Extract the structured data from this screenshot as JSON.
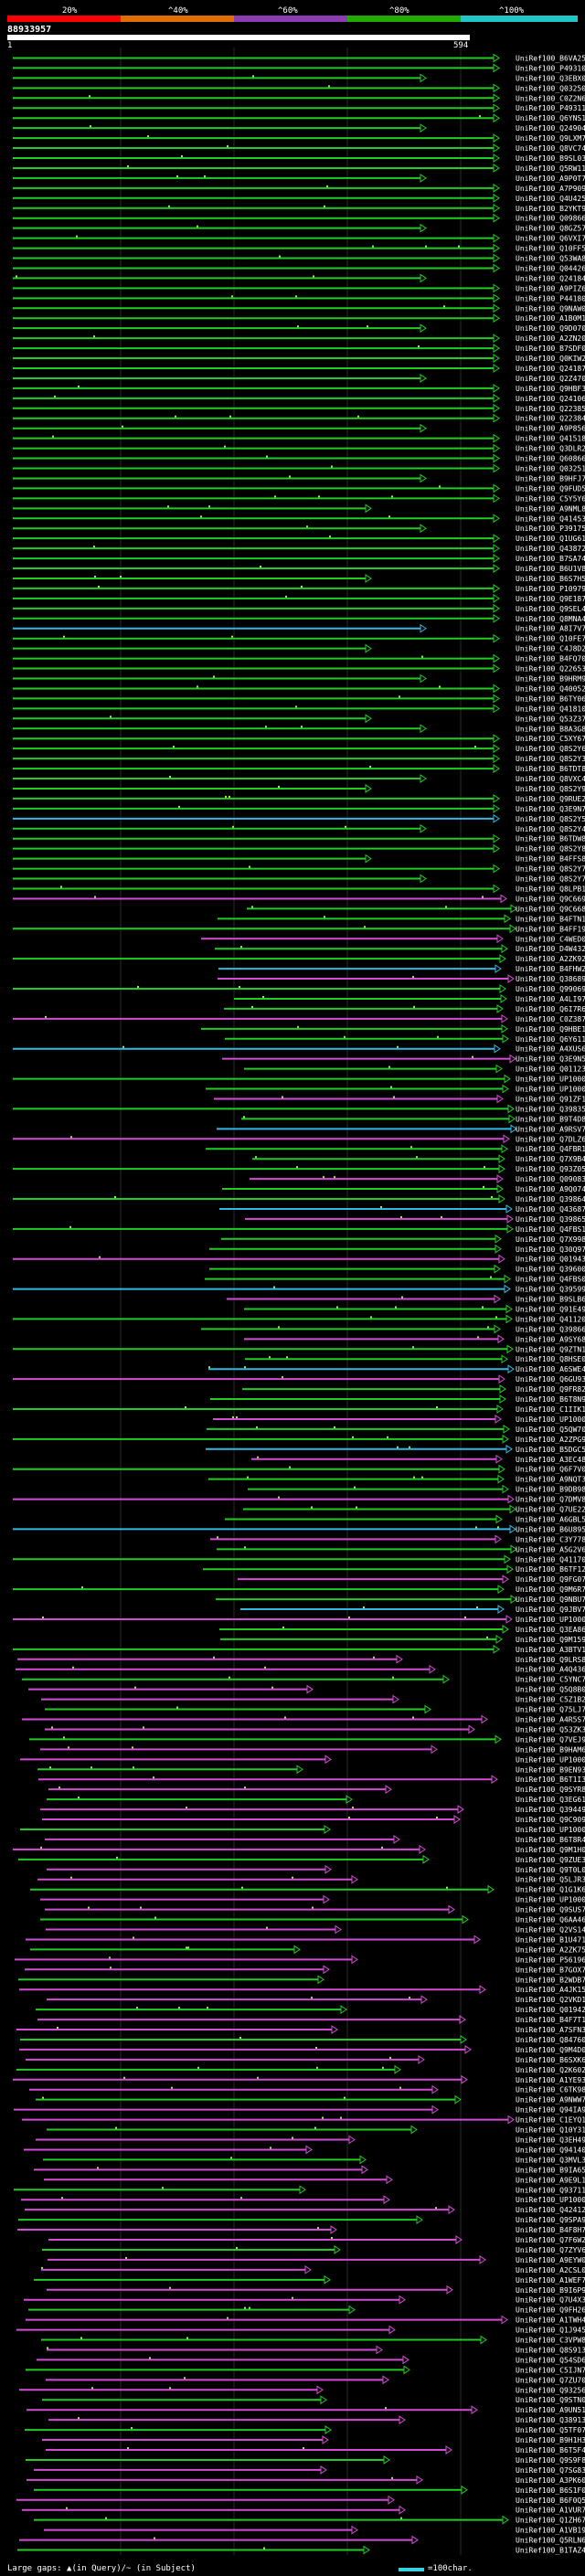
{
  "legend": {
    "labels": [
      "20%",
      "^40%",
      "^60%",
      "^80%",
      "^100%"
    ],
    "colors": [
      "#ff0000",
      "#e06d00",
      "#8b3bb3",
      "#22aa00",
      "#22c6c6"
    ]
  },
  "query": {
    "id": "88933957",
    "start": "1",
    "end": "594"
  },
  "colors": {
    "high": "#22cc22",
    "mid": "#d44cd4",
    "low": "#33b8e0",
    "lightgreen": "#9cf24a"
  },
  "hits": [
    "UniRef100_B6VA25",
    "UniRef100_P49310",
    "UniRef100_Q3EBX0",
    "UniRef100_Q03250",
    "UniRef100_C0Z2N6",
    "UniRef100_P49311",
    "UniRef100_Q6YNS1",
    "UniRef100_Q24904",
    "UniRef100_Q9LXM7",
    "UniRef100_Q8VC74",
    "UniRef100_B9SL03",
    "UniRef100_Q5RW11",
    "UniRef100_A9P0T7",
    "UniRef100_A7P909",
    "UniRef100_Q4U425",
    "UniRef100_B2YKT9",
    "UniRef100_Q09866",
    "UniRef100_Q8GZ57",
    "UniRef100_Q6VXI7",
    "UniRef100_Q10FF5",
    "UniRef100_Q53WA8",
    "UniRef100_Q04426",
    "UniRef100_Q24184",
    "UniRef100_A9PIZ6",
    "UniRef100_P44180",
    "UniRef100_Q9NAW0",
    "UniRef100_A1B0M1",
    "UniRef100_Q9D070",
    "UniRef100_A2ZN20",
    "UniRef100_B7SDF0",
    "UniRef100_Q0KIW2",
    "UniRef100_Q24187",
    "UniRef100_Q2Z470",
    "UniRef100_Q9HBF3",
    "UniRef100_Q24106",
    "UniRef100_Q22385",
    "UniRef100_Q22384",
    "UniRef100_A9P856",
    "UniRef100_Q41518",
    "UniRef100_Q3DLR2",
    "UniRef100_Q60866",
    "UniRef100_Q03251",
    "UniRef100_B9HFJ7",
    "UniRef100_Q9FUD5",
    "UniRef100_C5Y5Y6",
    "UniRef100_A9NML8",
    "UniRef100_Q41453",
    "UniRef100_P39175",
    "UniRef100_Q1UG61",
    "UniRef100_Q43872",
    "UniRef100_B7SA74",
    "UniRef100_B6U1V8",
    "UniRef100_B6S7H5",
    "UniRef100_P10979",
    "UniRef100_Q9E187",
    "UniRef100_Q9SEL4",
    "UniRef100_Q8MNA4",
    "UniRef100_A8I7V7",
    "UniRef100_Q10FE7",
    "UniRef100_C4J8D2",
    "UniRef100_B4FQ70",
    "UniRef100_Q22653",
    "UniRef100_B9HRM9",
    "UniRef100_Q40052",
    "UniRef100_B6TY06",
    "UniRef100_Q41810",
    "UniRef100_Q53Z37",
    "UniRef100_B8A3G8",
    "UniRef100_C5XY67",
    "UniRef100_Q8S2Y6",
    "UniRef100_Q8S2Y3",
    "UniRef100_B6TDT8",
    "UniRef100_Q8VXC4",
    "UniRef100_Q8S2Y9",
    "UniRef100_Q9RUE2",
    "UniRef100_Q3E9N7",
    "UniRef100_Q8S2Y5",
    "UniRef100_Q8S2Y4",
    "UniRef100_B6TDW8",
    "UniRef100_Q8S2Y8",
    "UniRef100_B4FFS8",
    "UniRef100_Q8S2Y7",
    "UniRef100_Q8S2Y7",
    "UniRef100_Q8LPB1",
    "UniRef100_Q9C669",
    "UniRef100_Q9C668",
    "UniRef100_B4FTN1",
    "UniRef100_B4FF19",
    "UniRef100_C4WED0",
    "UniRef100_D4W432",
    "UniRef100_A2ZK92",
    "UniRef100_B4FHW2",
    "UniRef100_Q38689",
    "UniRef100_Q99069",
    "UniRef100_A4LI97",
    "UniRef100_Q6I7R6",
    "UniRef100_C0Z387",
    "UniRef100_Q9HBE1",
    "UniRef100_Q6Y611",
    "UniRef100_A4XUS6",
    "UniRef100_Q3E9N5",
    "UniRef100_Q01123",
    "UniRef100_UP1000...",
    "UniRef100_UP1000...",
    "UniRef100_Q91ZF1",
    "UniRef100_Q39835",
    "UniRef100_B9T4D8",
    "UniRef100_A9RSV7",
    "UniRef100_Q7DLZ6",
    "UniRef100_Q4FBR1",
    "UniRef100_Q7X9B4",
    "UniRef100_Q93Z05",
    "UniRef100_Q09083",
    "UniRef100_A9Q074",
    "UniRef100_Q39864",
    "UniRef100_Q43687",
    "UniRef100_Q39865",
    "UniRef100_Q4FBS1",
    "UniRef100_Q7X998",
    "UniRef100_Q30Q97",
    "UniRef100_Q01943",
    "UniRef100_Q39600",
    "UniRef100_Q4FBS0",
    "UniRef100_Q39599",
    "UniRef100_B9SLB6",
    "UniRef100_Q91E49",
    "UniRef100_Q41120",
    "UniRef100_Q39866",
    "UniRef100_A9SY68",
    "UniRef100_Q9ZTN1",
    "UniRef100_Q8HSE0",
    "UniRef100_A6SWE4",
    "UniRef100_Q6GU93",
    "UniRef100_Q9FR82",
    "UniRef100_B6T8N9",
    "UniRef100_C1IIK1",
    "UniRef100_UP1000...",
    "UniRef100_Q5QW70",
    "UniRef100_A2ZPG9",
    "UniRef100_B5DGC5",
    "UniRef100_A3EC48",
    "UniRef100_Q6F7V0",
    "UniRef100_A9NQT3",
    "UniRef100_B9DB98",
    "UniRef100_Q7DMV8",
    "UniRef100_Q7UE22",
    "UniRef100_A6GBL5",
    "UniRef100_B6U895",
    "UniRef100_C3Y778",
    "UniRef100_A5G2V6",
    "UniRef100_Q41170",
    "UniRef100_B6TF12",
    "UniRef100_Q9FG07",
    "UniRef100_Q9M6R7",
    "UniRef100_Q9NBU7",
    "UniRef100_Q9JBV7",
    "UniRef100_UP1000...",
    "UniRef100_Q3EA86",
    "UniRef100_Q9M159",
    "UniRef100_A3BTV1",
    "UniRef100_Q9LRS8",
    "UniRef100_A4Q436",
    "UniRef100_C5YNC7",
    "UniRef100_Q5Q8B0",
    "UniRef100_C5Z1B2",
    "UniRef100_Q75LJ7",
    "UniRef100_A4R5S7",
    "UniRef100_Q53ZK3",
    "UniRef100_Q7VEJ9",
    "UniRef100_B9HAM6",
    "UniRef100_UP1000...",
    "UniRef100_B9EN93",
    "UniRef100_B6T1I3",
    "UniRef100_Q9SYR8",
    "UniRef100_Q3EG61",
    "UniRef100_Q39449",
    "UniRef100_Q9C909",
    "UniRef100_UP1000...",
    "UniRef100_B6T8R4",
    "UniRef100_Q9M1H0",
    "UniRef100_Q9ZUE3",
    "UniRef100_Q9T0L0",
    "UniRef100_Q5LJR3",
    "UniRef100_Q1G1K6",
    "UniRef100_UP1000...",
    "UniRef100_Q9SUS7",
    "UniRef100_Q6AA46",
    "UniRef100_Q2VS14",
    "UniRef100_B1U471",
    "UniRef100_A2ZK75",
    "UniRef100_P56196",
    "UniRef100_B7GOX7",
    "UniRef100_B2WDB7",
    "UniRef100_A4JK15",
    "UniRef100_Q2VKD1",
    "UniRef100_Q01942",
    "UniRef100_B4F7T1",
    "UniRef100_A7SFN3",
    "UniRef100_Q84760",
    "UniRef100_Q9M4D0",
    "UniRef100_B6SXK6",
    "UniRef100_Q2K602",
    "UniRef100_A1YE93",
    "UniRef100_C6TK98",
    "UniRef100_A9NWW7",
    "UniRef100_Q94IA9",
    "UniRef100_C1EYQ1",
    "UniRef100_Q10Y31",
    "UniRef100_Q3EH49",
    "UniRef100_Q94140",
    "UniRef100_Q3MVL3",
    "UniRef100_B9IA65",
    "UniRef100_A9E9L1",
    "UniRef100_Q93711",
    "UniRef100_UP1000...",
    "UniRef100_Q42412",
    "UniRef100_Q9SPA9",
    "UniRef100_B4F8H7",
    "UniRef100_Q7F6W2",
    "UniRef100_Q7ZYV6",
    "UniRef100_A9EYW0",
    "UniRef100_A2CSL0",
    "UniRef100_A1WEF7",
    "UniRef100_B9I6P9",
    "UniRef100_Q7U4X3",
    "UniRef100_Q9FH26",
    "UniRef100_A1TWH4",
    "UniRef100_Q1J945",
    "UniRef100_C3VPW8",
    "UniRef100_Q8S913",
    "UniRef100_Q54SD6",
    "UniRef100_C5IJN7",
    "UniRef100_Q7ZU70",
    "UniRef100_Q93256",
    "UniRef100_Q9STN0",
    "UniRef100_A9UN51",
    "UniRef100_Q38913-2",
    "UniRef100_Q5TF07",
    "UniRef100_B9H1H3",
    "UniRef100_B6T5F4",
    "UniRef100_Q9S9F8",
    "UniRef100_Q7SG83",
    "UniRef100_A3PK60",
    "UniRef100_B6S1F0",
    "UniRef100_B6F0Q5",
    "UniRef100_A1VUR7",
    "UniRef100_Q1ZH67",
    "UniRef100_A1VB19",
    "UniRef100_Q5RLN6",
    "UniRef100_B1TAZ4"
  ],
  "footer": {
    "left_text": "Large gaps: ▲(in Query)/~ (in Subject)",
    "right_text": "=100char."
  }
}
